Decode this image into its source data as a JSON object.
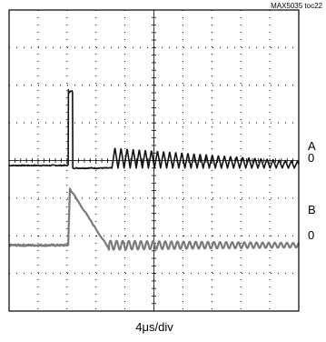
{
  "figure_id": "MAX5035 toc22",
  "chart_data": {
    "type": "line",
    "xlabel": "4μs/div",
    "grid": true,
    "divisions": {
      "x": 10,
      "y": 8
    },
    "series": [
      {
        "name": "A",
        "zero_label": "0",
        "color": "#111111",
        "zero_level_div": 3.87,
        "pulse": {
          "start_div": 2.05,
          "end_div": 2.2,
          "level_div": 5.88
        },
        "low_until_div": 3.55,
        "low_level_div": 3.8,
        "ringing": {
          "start_div": 3.55,
          "end_div": 10.0,
          "period_div": 0.21,
          "amplitude_start_div": 0.55,
          "amplitude_end_div": 0.18
        }
      },
      {
        "name": "B",
        "zero_label": "0",
        "color": "#7a7a7a",
        "zero_level_div": 1.75,
        "step": {
          "start_div": 2.05,
          "peak_div": 2.1,
          "peak_level_div": 3.25
        },
        "decay_end_div": 3.45,
        "ringing": {
          "start_div": 3.45,
          "end_div": 10.0,
          "period_div": 0.21,
          "amplitude_start_div": 0.12,
          "amplitude_end_div": 0.06
        }
      }
    ]
  }
}
